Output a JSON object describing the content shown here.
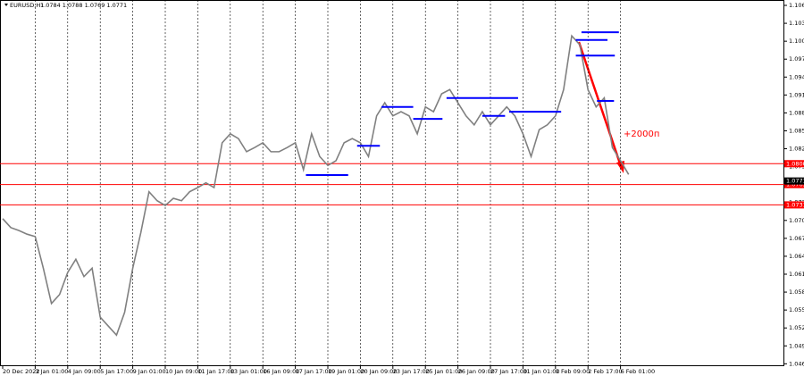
{
  "chart_data": {
    "type": "line",
    "title": "EURUSD,H1",
    "subtitle": "1.0784 1.0788 1.0769 1.0771",
    "annotation": "+2000п",
    "categories": [
      "20 Dec 2022",
      null,
      null,
      null,
      "3 Jan 01:00",
      null,
      null,
      null,
      "4 Jan 09:00",
      null,
      null,
      null,
      "5 Jan 17:00",
      null,
      null,
      null,
      "9 Jan 01:00",
      null,
      null,
      null,
      "10 Jan 09:00",
      null,
      null,
      null,
      "11 Jan 17:00",
      null,
      null,
      null,
      "13 Jan 01:00",
      null,
      null,
      null,
      "16 Jan 09:00",
      null,
      null,
      null,
      "17 Jan 17:00",
      null,
      null,
      null,
      "19 Jan 01:00",
      null,
      null,
      null,
      "20 Jan 09:00",
      null,
      null,
      null,
      "23 Jan 17:00",
      null,
      null,
      null,
      "25 Jan 01:00",
      null,
      null,
      null,
      "26 Jan 09:00",
      null,
      null,
      null,
      "27 Jan 17:00",
      null,
      null,
      null,
      "31 Jan 01:00",
      null,
      null,
      null,
      "1 Feb 09:00",
      null,
      null,
      null,
      "2 Feb 17:00",
      null,
      null,
      null,
      "6 Feb 01:00",
      null
    ],
    "series": [
      {
        "name": "EURUSD",
        "color": "#808080",
        "values": [
          1.0708,
          1.0693,
          1.0688,
          1.0682,
          1.0678,
          1.0625,
          1.0566,
          1.0581,
          1.0618,
          1.064,
          1.0611,
          1.0625,
          1.0543,
          1.0528,
          1.0513,
          1.0551,
          1.0625,
          1.0685,
          1.0753,
          1.0738,
          1.073,
          1.0742,
          1.0738,
          1.0753,
          1.076,
          1.0768,
          1.076,
          1.0835,
          1.085,
          1.0842,
          1.082,
          1.0827,
          1.0835,
          1.082,
          1.082,
          1.0827,
          1.0835,
          1.079,
          1.085,
          1.0812,
          1.0797,
          1.0805,
          1.0835,
          1.0842,
          1.0835,
          1.0812,
          1.088,
          1.0902,
          1.088,
          1.0887,
          1.088,
          1.085,
          1.0895,
          1.0887,
          1.0917,
          1.0924,
          1.0902,
          1.088,
          1.0865,
          1.0887,
          1.0865,
          1.088,
          1.0895,
          1.088,
          1.085,
          1.0812,
          1.0857,
          1.0865,
          1.088,
          1.0924,
          1.1014,
          1.0999,
          1.0924,
          1.0895,
          1.091,
          1.0827,
          1.0805,
          1.0782
        ]
      }
    ],
    "segments": [
      {
        "from": 46.6,
        "to": 50.5,
        "value": 1.0895
      },
      {
        "from": 43.6,
        "to": 46.4,
        "value": 1.083
      },
      {
        "from": 37.3,
        "to": 42.5,
        "value": 1.0781
      },
      {
        "from": 50.5,
        "to": 54.1,
        "value": 1.0875
      },
      {
        "from": 54.6,
        "to": 63.4,
        "value": 1.091
      },
      {
        "from": 59.0,
        "to": 61.8,
        "value": 1.088
      },
      {
        "from": 62.3,
        "to": 68.7,
        "value": 1.0887
      },
      {
        "from": 70.5,
        "to": 74.4,
        "value": 1.1007
      },
      {
        "from": 71.2,
        "to": 75.8,
        "value": 1.102
      },
      {
        "from": 70.5,
        "to": 75.3,
        "value": 1.0981
      },
      {
        "from": 73.1,
        "to": 75.2,
        "value": 1.0905
      }
    ],
    "segment_color": "#0000ff",
    "levels": [
      {
        "value": 1.08,
        "label": "1.0800"
      },
      {
        "value": 1.0765,
        "label": "1.0765"
      },
      {
        "value": 1.0731,
        "label": "1.0731"
      }
    ],
    "level_color": "#ff0000",
    "price": 1.0771,
    "ylim": [
      1.0461,
      1.1074
    ],
    "yticks": [
      1.1065,
      1.1035,
      1.1005,
      1.0975,
      1.0945,
      1.0915,
      1.0885,
      1.0855,
      1.0825,
      1.0795,
      1.0765,
      1.0735,
      1.0705,
      1.0675,
      1.0645,
      1.0615,
      1.0585,
      1.0555,
      1.0525,
      1.0495,
      1.0465
    ],
    "grid": true
  }
}
